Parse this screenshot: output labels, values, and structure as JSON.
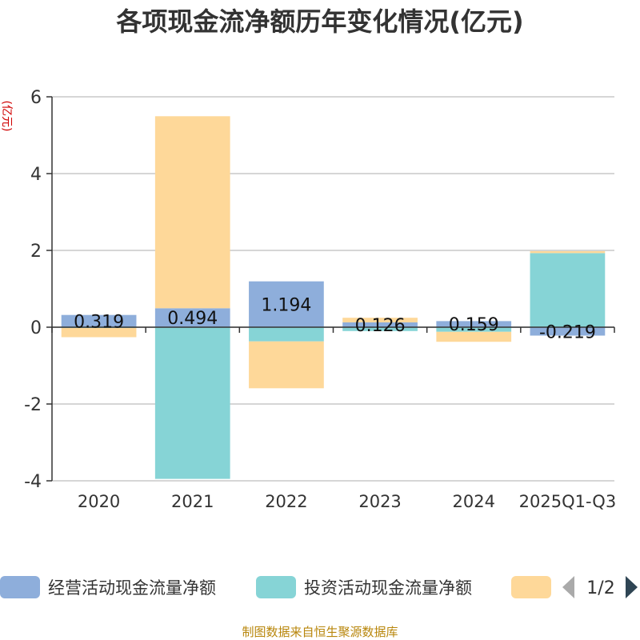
{
  "chart_data": {
    "type": "bar",
    "stacked": true,
    "title": "各项现金流净额历年变化情况(亿元)",
    "ylabel": "(亿元)",
    "xlabel": "",
    "categories": [
      "2020",
      "2021",
      "2022",
      "2023",
      "2024",
      "2025Q1-Q3"
    ],
    "ylim": [
      -4,
      6
    ],
    "yticks": [
      -4,
      -2,
      0,
      2,
      4,
      6
    ],
    "grid": true,
    "series": [
      {
        "name": "经营活动现金流量净额",
        "color": "#8eaedb",
        "values": [
          0.319,
          0.494,
          1.194,
          0.126,
          0.159,
          -0.219
        ],
        "labels": [
          "0.319",
          "0.494",
          "1.194",
          "0.126",
          "0.159",
          "-0.219"
        ]
      },
      {
        "name": "投资活动现金流量净额",
        "color": "#86d4d6",
        "values": [
          -0.02,
          -3.95,
          -0.37,
          -0.1,
          -0.12,
          1.93
        ],
        "labels": []
      },
      {
        "name": "",
        "color": "#fed899",
        "values": [
          -0.24,
          5.0,
          -1.22,
          0.12,
          -0.26,
          0.05
        ],
        "labels": []
      }
    ],
    "legend": {
      "position": "bottom",
      "page": "1/2"
    }
  },
  "source": "制图数据来自恒生聚源数据库"
}
